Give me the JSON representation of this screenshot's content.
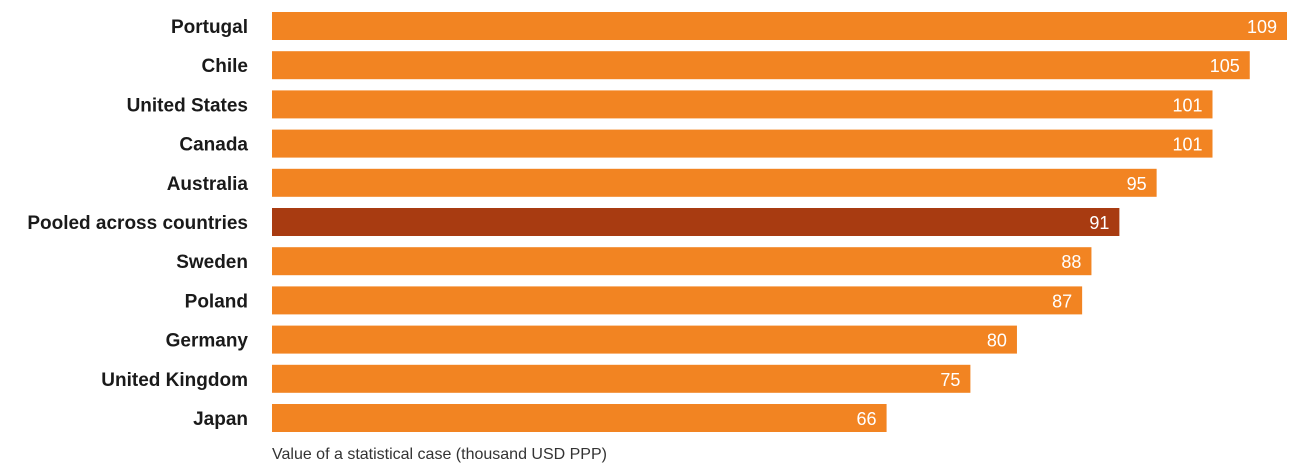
{
  "chart_data": {
    "type": "bar",
    "orientation": "horizontal",
    "categories": [
      "Portugal",
      "Chile",
      "United States",
      "Canada",
      "Australia",
      "Pooled across countries",
      "Sweden",
      "Poland",
      "Germany",
      "United Kingdom",
      "Japan"
    ],
    "values": [
      109,
      105,
      101,
      101,
      95,
      91,
      88,
      87,
      80,
      75,
      66
    ],
    "highlight_category": "Pooled across countries",
    "xlabel": "Value of a statistical case (thousand USD PPP)",
    "ylabel": "",
    "xlim": [
      0,
      109
    ],
    "grid": false,
    "legend": "none",
    "colors": {
      "bar": "#f28422",
      "highlight": "#a83b11",
      "value_label": "#ffffff",
      "category_label": "#1a1a1a"
    }
  }
}
